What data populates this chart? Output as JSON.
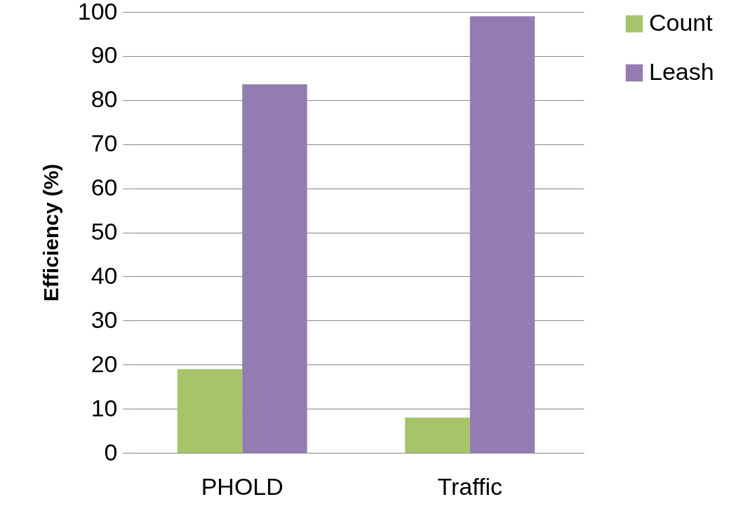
{
  "chart_data": {
    "type": "bar",
    "ylabel": "Efficiency (%)",
    "categories": [
      "PHOLD",
      "Traffic"
    ],
    "series": [
      {
        "name": "Count",
        "color": "#a8c46b",
        "values": [
          19,
          8
        ]
      },
      {
        "name": "Leash",
        "color": "#937cb2",
        "values": [
          83.6,
          99
        ]
      }
    ],
    "ylim": [
      0,
      100
    ],
    "yticks": [
      0,
      10,
      20,
      30,
      40,
      50,
      60,
      70,
      80,
      90,
      100
    ],
    "grid": "y",
    "legend": "right"
  }
}
